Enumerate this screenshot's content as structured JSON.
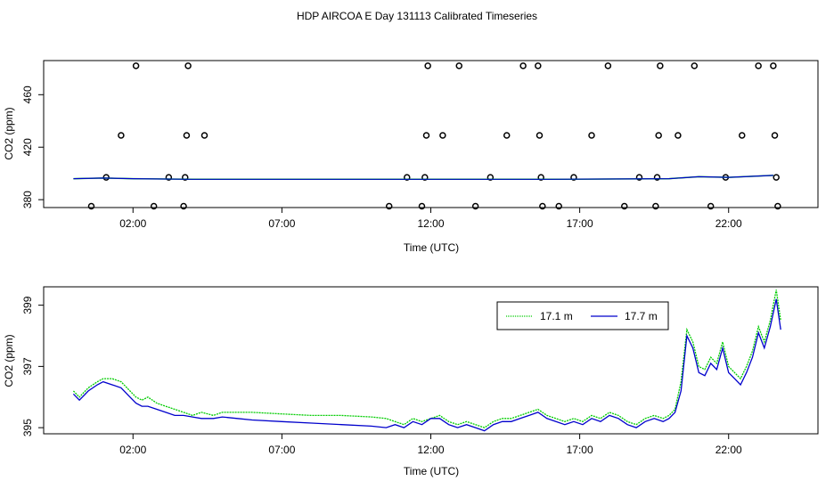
{
  "figure": {
    "title": "HDP AIRCOA E  Day 131113  Calibrated Timeseries"
  },
  "chart_data": [
    {
      "type": "scatter",
      "title": "",
      "xlabel": "Time (UTC)",
      "ylabel": "CO2 (ppm)",
      "x_unit": "hour of day (UTC)",
      "xlim": [
        -1.0,
        25.0
      ],
      "ylim": [
        374,
        486
      ],
      "x_ticks": [
        2,
        7,
        12,
        17,
        22
      ],
      "x_tick_labels": [
        "02:00",
        "07:00",
        "12:00",
        "17:00",
        "22:00"
      ],
      "y_ticks": [
        380,
        420,
        460
      ],
      "y_tick_labels": [
        "380",
        "420",
        "460"
      ],
      "grid": false,
      "colors": {
        "circles": "#000000",
        "line_171": "#00cc00",
        "line_177": "#0000cc"
      },
      "calibration_points": [
        {
          "x": 0.6,
          "y": 375
        },
        {
          "x": 1.1,
          "y": 397
        },
        {
          "x": 1.6,
          "y": 429
        },
        {
          "x": 2.1,
          "y": 482
        },
        {
          "x": 2.7,
          "y": 375
        },
        {
          "x": 3.2,
          "y": 397
        },
        {
          "x": 3.7,
          "y": 375
        },
        {
          "x": 3.75,
          "y": 397
        },
        {
          "x": 3.8,
          "y": 429
        },
        {
          "x": 3.85,
          "y": 482
        },
        {
          "x": 4.4,
          "y": 429
        },
        {
          "x": 10.6,
          "y": 375
        },
        {
          "x": 11.2,
          "y": 397
        },
        {
          "x": 11.7,
          "y": 375
        },
        {
          "x": 11.8,
          "y": 397
        },
        {
          "x": 11.85,
          "y": 429
        },
        {
          "x": 11.9,
          "y": 482
        },
        {
          "x": 12.4,
          "y": 429
        },
        {
          "x": 12.95,
          "y": 482
        },
        {
          "x": 13.5,
          "y": 375
        },
        {
          "x": 14.0,
          "y": 397
        },
        {
          "x": 14.55,
          "y": 429
        },
        {
          "x": 15.1,
          "y": 482
        },
        {
          "x": 15.6,
          "y": 482
        },
        {
          "x": 15.65,
          "y": 429
        },
        {
          "x": 15.7,
          "y": 397
        },
        {
          "x": 15.75,
          "y": 375
        },
        {
          "x": 16.3,
          "y": 375
        },
        {
          "x": 16.8,
          "y": 397
        },
        {
          "x": 17.4,
          "y": 429
        },
        {
          "x": 17.95,
          "y": 482
        },
        {
          "x": 18.5,
          "y": 375
        },
        {
          "x": 19.0,
          "y": 397
        },
        {
          "x": 19.55,
          "y": 375
        },
        {
          "x": 19.6,
          "y": 397
        },
        {
          "x": 19.65,
          "y": 429
        },
        {
          "x": 19.7,
          "y": 482
        },
        {
          "x": 20.3,
          "y": 429
        },
        {
          "x": 20.85,
          "y": 482
        },
        {
          "x": 21.4,
          "y": 375
        },
        {
          "x": 21.9,
          "y": 397
        },
        {
          "x": 22.45,
          "y": 429
        },
        {
          "x": 23.0,
          "y": 482
        },
        {
          "x": 23.5,
          "y": 482
        },
        {
          "x": 23.55,
          "y": 429
        },
        {
          "x": 23.6,
          "y": 397
        },
        {
          "x": 23.65,
          "y": 375
        }
      ],
      "series": [
        {
          "x": [
            0.0,
            1.0,
            2.0,
            4.0,
            8.0,
            12.0,
            16.0,
            20.0,
            21.0,
            22.0,
            23.0,
            23.5
          ],
          "y": [
            396,
            396.5,
            396,
            395.5,
            395.5,
            395.5,
            395.5,
            396.0,
            397.5,
            397.0,
            398.0,
            398.5
          ]
        }
      ]
    },
    {
      "type": "line",
      "title": "",
      "xlabel": "Time (UTC)",
      "ylabel": "CO2 (ppm)",
      "x_unit": "hour of day (UTC)",
      "xlim": [
        -1.0,
        25.0
      ],
      "ylim": [
        394.8,
        399.6
      ],
      "x_ticks": [
        2,
        7,
        12,
        17,
        22
      ],
      "x_tick_labels": [
        "02:00",
        "07:00",
        "12:00",
        "17:00",
        "22:00"
      ],
      "y_ticks": [
        395,
        397,
        399
      ],
      "y_tick_labels": [
        "395",
        "397",
        "399"
      ],
      "grid": false,
      "legend_position": "top-right",
      "series": [
        {
          "name": "17.1 m",
          "color": "#00cc00",
          "x": [
            0.0,
            0.2,
            0.5,
            0.8,
            1.0,
            1.3,
            1.6,
            1.9,
            2.1,
            2.3,
            2.5,
            2.8,
            3.1,
            3.4,
            3.7,
            4.0,
            4.3,
            4.7,
            5.0,
            5.5,
            6.0,
            7.0,
            8.0,
            9.0,
            10.0,
            10.5,
            10.8,
            11.1,
            11.4,
            11.7,
            12.0,
            12.3,
            12.6,
            12.9,
            13.2,
            13.5,
            13.8,
            14.1,
            14.4,
            14.7,
            15.0,
            15.3,
            15.6,
            15.9,
            16.2,
            16.5,
            16.8,
            17.1,
            17.4,
            17.7,
            18.0,
            18.3,
            18.6,
            18.9,
            19.2,
            19.5,
            19.8,
            20.0,
            20.2,
            20.4,
            20.6,
            20.8,
            21.0,
            21.2,
            21.4,
            21.6,
            21.8,
            22.0,
            22.2,
            22.4,
            22.6,
            22.8,
            23.0,
            23.2,
            23.4,
            23.6,
            23.75
          ],
          "y": [
            396.2,
            396.0,
            396.3,
            396.5,
            396.6,
            396.6,
            396.5,
            396.2,
            396.0,
            395.9,
            396.0,
            395.8,
            395.7,
            395.6,
            395.5,
            395.4,
            395.5,
            395.4,
            395.5,
            395.5,
            395.5,
            395.45,
            395.4,
            395.4,
            395.35,
            395.3,
            395.2,
            395.1,
            395.3,
            395.2,
            395.3,
            395.4,
            395.2,
            395.1,
            395.2,
            395.1,
            395.0,
            395.2,
            395.3,
            395.3,
            395.4,
            395.5,
            395.6,
            395.4,
            395.3,
            395.2,
            395.3,
            395.2,
            395.4,
            395.3,
            395.5,
            395.4,
            395.2,
            395.1,
            395.3,
            395.4,
            395.3,
            395.4,
            395.6,
            396.5,
            398.2,
            397.8,
            397.0,
            396.9,
            397.3,
            397.1,
            397.8,
            397.0,
            396.8,
            396.6,
            397.0,
            397.5,
            398.3,
            397.8,
            398.5,
            399.5,
            398.5
          ]
        },
        {
          "name": "17.7 m",
          "color": "#0000cc",
          "x": [
            0.0,
            0.2,
            0.5,
            0.8,
            1.0,
            1.3,
            1.6,
            1.9,
            2.1,
            2.3,
            2.5,
            2.8,
            3.1,
            3.4,
            3.7,
            4.0,
            4.3,
            4.7,
            5.0,
            5.5,
            6.0,
            7.0,
            8.0,
            9.0,
            10.0,
            10.5,
            10.8,
            11.1,
            11.4,
            11.7,
            12.0,
            12.3,
            12.6,
            12.9,
            13.2,
            13.5,
            13.8,
            14.1,
            14.4,
            14.7,
            15.0,
            15.3,
            15.6,
            15.9,
            16.2,
            16.5,
            16.8,
            17.1,
            17.4,
            17.7,
            18.0,
            18.3,
            18.6,
            18.9,
            19.2,
            19.5,
            19.8,
            20.0,
            20.2,
            20.4,
            20.6,
            20.8,
            21.0,
            21.2,
            21.4,
            21.6,
            21.8,
            22.0,
            22.2,
            22.4,
            22.6,
            22.8,
            23.0,
            23.2,
            23.4,
            23.6,
            23.75
          ],
          "y": [
            396.1,
            395.9,
            396.2,
            396.4,
            396.5,
            396.4,
            396.3,
            396.0,
            395.8,
            395.7,
            395.7,
            395.6,
            395.5,
            395.4,
            395.4,
            395.35,
            395.3,
            395.3,
            395.35,
            395.3,
            395.25,
            395.2,
            395.15,
            395.1,
            395.05,
            395.0,
            395.1,
            395.0,
            395.2,
            395.1,
            395.3,
            395.3,
            395.1,
            395.0,
            395.1,
            395.0,
            394.9,
            395.1,
            395.2,
            395.2,
            395.3,
            395.4,
            395.5,
            395.3,
            395.2,
            395.1,
            395.2,
            395.1,
            395.3,
            395.2,
            395.4,
            395.3,
            395.1,
            395.0,
            395.2,
            395.3,
            395.2,
            395.3,
            395.5,
            396.2,
            398.0,
            397.6,
            396.8,
            396.7,
            397.1,
            396.9,
            397.6,
            396.8,
            396.6,
            396.4,
            396.8,
            397.3,
            398.1,
            397.6,
            398.3,
            399.2,
            398.2
          ]
        }
      ]
    }
  ]
}
